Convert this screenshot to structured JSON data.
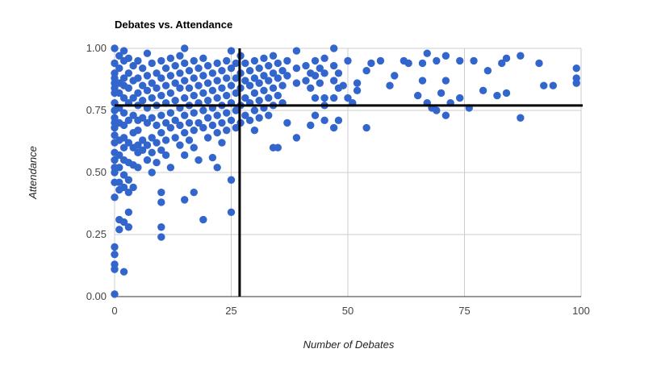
{
  "chart_data": {
    "type": "scatter",
    "title": "Debates vs. Attendance",
    "xlabel": "Number of Debates",
    "ylabel": "Attendance",
    "xlim": [
      0,
      100
    ],
    "ylim": [
      0,
      1
    ],
    "x_ticks": [
      0,
      25,
      50,
      75,
      100
    ],
    "x_tick_labels": [
      "0",
      "25",
      "50",
      "75",
      "100"
    ],
    "y_ticks": [
      0,
      0.25,
      0.5,
      0.75,
      1
    ],
    "y_tick_labels": [
      "0.00",
      "0.25",
      "0.50",
      "0.75",
      "1.00"
    ],
    "grid": true,
    "point_color": "#3366cc",
    "reference_lines": [
      {
        "orientation": "vertical",
        "value": 26.8,
        "color": "#000000"
      },
      {
        "orientation": "horizontal",
        "value": 0.77,
        "color": "#000000"
      }
    ],
    "series": [
      {
        "points": [
          [
            0,
            1.0
          ],
          [
            0,
            0.94
          ],
          [
            0,
            0.9
          ],
          [
            0,
            0.88
          ],
          [
            0,
            0.86
          ],
          [
            0,
            0.84
          ],
          [
            0,
            0.82
          ],
          [
            0,
            0.78
          ],
          [
            0,
            0.75
          ],
          [
            0,
            0.72
          ],
          [
            0,
            0.7
          ],
          [
            0,
            0.68
          ],
          [
            0,
            0.65
          ],
          [
            0,
            0.62
          ],
          [
            0,
            0.58
          ],
          [
            0,
            0.55
          ],
          [
            0,
            0.52
          ],
          [
            0,
            0.5
          ],
          [
            0,
            0.46
          ],
          [
            0,
            0.4
          ],
          [
            0,
            0.2
          ],
          [
            0,
            0.17
          ],
          [
            0,
            0.13
          ],
          [
            0,
            0.11
          ],
          [
            0,
            0.01
          ],
          [
            1,
            0.97
          ],
          [
            1,
            0.92
          ],
          [
            1,
            0.86
          ],
          [
            1,
            0.82
          ],
          [
            1,
            0.76
          ],
          [
            1,
            0.7
          ],
          [
            1,
            0.63
          ],
          [
            1,
            0.57
          ],
          [
            1,
            0.52
          ],
          [
            1,
            0.46
          ],
          [
            1,
            0.43
          ],
          [
            1,
            0.31
          ],
          [
            1,
            0.27
          ],
          [
            2,
            0.99
          ],
          [
            2,
            0.95
          ],
          [
            2,
            0.88
          ],
          [
            2,
            0.85
          ],
          [
            2,
            0.8
          ],
          [
            2,
            0.74
          ],
          [
            2,
            0.69
          ],
          [
            2,
            0.64
          ],
          [
            2,
            0.6
          ],
          [
            2,
            0.55
          ],
          [
            2,
            0.49
          ],
          [
            2,
            0.44
          ],
          [
            2,
            0.3
          ],
          [
            2,
            0.1
          ],
          [
            3,
            0.96
          ],
          [
            3,
            0.9
          ],
          [
            3,
            0.84
          ],
          [
            3,
            0.78
          ],
          [
            3,
            0.71
          ],
          [
            3,
            0.62
          ],
          [
            3,
            0.54
          ],
          [
            3,
            0.47
          ],
          [
            3,
            0.42
          ],
          [
            3,
            0.34
          ],
          [
            3,
            0.28
          ],
          [
            4,
            0.93
          ],
          [
            4,
            0.87
          ],
          [
            4,
            0.8
          ],
          [
            4,
            0.73
          ],
          [
            4,
            0.66
          ],
          [
            4,
            0.6
          ],
          [
            4,
            0.53
          ],
          [
            4,
            0.44
          ],
          [
            5,
            0.95
          ],
          [
            5,
            0.88
          ],
          [
            5,
            0.82
          ],
          [
            5,
            0.77
          ],
          [
            5,
            0.71
          ],
          [
            5,
            0.67
          ],
          [
            5,
            0.61
          ],
          [
            5,
            0.58
          ],
          [
            5,
            0.52
          ],
          [
            6,
            0.92
          ],
          [
            6,
            0.85
          ],
          [
            6,
            0.79
          ],
          [
            6,
            0.72
          ],
          [
            6,
            0.63
          ],
          [
            6,
            0.59
          ],
          [
            7,
            0.98
          ],
          [
            7,
            0.89
          ],
          [
            7,
            0.83
          ],
          [
            7,
            0.76
          ],
          [
            7,
            0.7
          ],
          [
            7,
            0.61
          ],
          [
            7,
            0.55
          ],
          [
            8,
            0.94
          ],
          [
            8,
            0.86
          ],
          [
            8,
            0.8
          ],
          [
            8,
            0.72
          ],
          [
            8,
            0.64
          ],
          [
            8,
            0.58
          ],
          [
            8,
            0.5
          ],
          [
            9,
            0.9
          ],
          [
            9,
            0.84
          ],
          [
            9,
            0.77
          ],
          [
            9,
            0.69
          ],
          [
            9,
            0.62
          ],
          [
            9,
            0.54
          ],
          [
            10,
            0.95
          ],
          [
            10,
            0.88
          ],
          [
            10,
            0.81
          ],
          [
            10,
            0.73
          ],
          [
            10,
            0.66
          ],
          [
            10,
            0.59
          ],
          [
            10,
            0.42
          ],
          [
            10,
            0.38
          ],
          [
            10,
            0.28
          ],
          [
            10,
            0.24
          ],
          [
            11,
            0.92
          ],
          [
            11,
            0.85
          ],
          [
            11,
            0.78
          ],
          [
            11,
            0.7
          ],
          [
            11,
            0.63
          ],
          [
            11,
            0.57
          ],
          [
            12,
            0.96
          ],
          [
            12,
            0.89
          ],
          [
            12,
            0.82
          ],
          [
            12,
            0.74
          ],
          [
            12,
            0.68
          ],
          [
            12,
            0.52
          ],
          [
            13,
            0.93
          ],
          [
            13,
            0.86
          ],
          [
            13,
            0.79
          ],
          [
            13,
            0.71
          ],
          [
            13,
            0.64
          ],
          [
            14,
            0.97
          ],
          [
            14,
            0.9
          ],
          [
            14,
            0.84
          ],
          [
            14,
            0.76
          ],
          [
            14,
            0.69
          ],
          [
            14,
            0.61
          ],
          [
            15,
            1.0
          ],
          [
            15,
            0.94
          ],
          [
            15,
            0.87
          ],
          [
            15,
            0.8
          ],
          [
            15,
            0.73
          ],
          [
            15,
            0.66
          ],
          [
            15,
            0.57
          ],
          [
            15,
            0.39
          ],
          [
            16,
            0.91
          ],
          [
            16,
            0.84
          ],
          [
            16,
            0.77
          ],
          [
            16,
            0.7
          ],
          [
            16,
            0.63
          ],
          [
            17,
            0.95
          ],
          [
            17,
            0.88
          ],
          [
            17,
            0.81
          ],
          [
            17,
            0.74
          ],
          [
            17,
            0.67
          ],
          [
            17,
            0.6
          ],
          [
            17,
            0.42
          ],
          [
            18,
            0.92
          ],
          [
            18,
            0.85
          ],
          [
            18,
            0.78
          ],
          [
            18,
            0.7
          ],
          [
            18,
            0.55
          ],
          [
            19,
            0.96
          ],
          [
            19,
            0.89
          ],
          [
            19,
            0.82
          ],
          [
            19,
            0.75
          ],
          [
            19,
            0.68
          ],
          [
            19,
            0.31
          ],
          [
            20,
            0.93
          ],
          [
            20,
            0.86
          ],
          [
            20,
            0.79
          ],
          [
            20,
            0.72
          ],
          [
            20,
            0.64
          ],
          [
            21,
            0.9
          ],
          [
            21,
            0.83
          ],
          [
            21,
            0.76
          ],
          [
            21,
            0.69
          ],
          [
            21,
            0.56
          ],
          [
            22,
            0.94
          ],
          [
            22,
            0.87
          ],
          [
            22,
            0.8
          ],
          [
            22,
            0.73
          ],
          [
            22,
            0.66
          ],
          [
            22,
            0.52
          ],
          [
            23,
            0.91
          ],
          [
            23,
            0.84
          ],
          [
            23,
            0.77
          ],
          [
            23,
            0.7
          ],
          [
            23,
            0.62
          ],
          [
            24,
            0.95
          ],
          [
            24,
            0.88
          ],
          [
            24,
            0.81
          ],
          [
            24,
            0.74
          ],
          [
            24,
            0.67
          ],
          [
            25,
            0.99
          ],
          [
            25,
            0.92
          ],
          [
            25,
            0.85
          ],
          [
            25,
            0.78
          ],
          [
            25,
            0.71
          ],
          [
            25,
            0.47
          ],
          [
            25,
            0.34
          ],
          [
            26,
            0.94
          ],
          [
            26,
            0.88
          ],
          [
            26,
            0.82
          ],
          [
            26,
            0.75
          ],
          [
            26,
            0.68
          ],
          [
            27,
            0.97
          ],
          [
            27,
            0.9
          ],
          [
            27,
            0.84
          ],
          [
            27,
            0.77
          ],
          [
            27,
            0.7
          ],
          [
            28,
            0.94
          ],
          [
            28,
            0.87
          ],
          [
            28,
            0.8
          ],
          [
            28,
            0.73
          ],
          [
            29,
            0.91
          ],
          [
            29,
            0.85
          ],
          [
            29,
            0.78
          ],
          [
            29,
            0.71
          ],
          [
            30,
            0.95
          ],
          [
            30,
            0.88
          ],
          [
            30,
            0.82
          ],
          [
            30,
            0.75
          ],
          [
            30,
            0.67
          ],
          [
            31,
            0.92
          ],
          [
            31,
            0.86
          ],
          [
            31,
            0.79
          ],
          [
            31,
            0.72
          ],
          [
            32,
            0.96
          ],
          [
            32,
            0.89
          ],
          [
            32,
            0.83
          ],
          [
            32,
            0.76
          ],
          [
            33,
            0.93
          ],
          [
            33,
            0.87
          ],
          [
            33,
            0.8
          ],
          [
            33,
            0.73
          ],
          [
            34,
            0.97
          ],
          [
            34,
            0.9
          ],
          [
            34,
            0.84
          ],
          [
            34,
            0.77
          ],
          [
            34,
            0.6
          ],
          [
            35,
            0.94
          ],
          [
            35,
            0.88
          ],
          [
            35,
            0.81
          ],
          [
            35,
            0.6
          ],
          [
            36,
            0.91
          ],
          [
            36,
            0.85
          ],
          [
            36,
            0.78
          ],
          [
            37,
            0.95
          ],
          [
            37,
            0.89
          ],
          [
            37,
            0.7
          ],
          [
            39,
            0.99
          ],
          [
            39,
            0.92
          ],
          [
            39,
            0.86
          ],
          [
            39,
            0.64
          ],
          [
            41,
            0.93
          ],
          [
            41,
            0.87
          ],
          [
            42,
            0.9
          ],
          [
            42,
            0.84
          ],
          [
            42,
            0.69
          ],
          [
            43,
            0.95
          ],
          [
            43,
            0.89
          ],
          [
            43,
            0.8
          ],
          [
            43,
            0.73
          ],
          [
            44,
            0.92
          ],
          [
            44,
            0.86
          ],
          [
            45,
            0.96
          ],
          [
            45,
            0.9
          ],
          [
            45,
            0.8
          ],
          [
            45,
            0.77
          ],
          [
            45,
            0.71
          ],
          [
            47,
            1.0
          ],
          [
            47,
            0.93
          ],
          [
            47,
            0.87
          ],
          [
            47,
            0.8
          ],
          [
            47,
            0.68
          ],
          [
            48,
            0.9
          ],
          [
            48,
            0.84
          ],
          [
            48,
            0.71
          ],
          [
            49,
            0.85
          ],
          [
            50,
            0.95
          ],
          [
            50,
            0.8
          ],
          [
            51,
            0.78
          ],
          [
            52,
            0.86
          ],
          [
            52,
            0.83
          ],
          [
            54,
            0.91
          ],
          [
            54,
            0.68
          ],
          [
            55,
            0.94
          ],
          [
            57,
            0.95
          ],
          [
            59,
            0.85
          ],
          [
            60,
            0.89
          ],
          [
            62,
            0.95
          ],
          [
            63,
            0.94
          ],
          [
            65,
            0.81
          ],
          [
            66,
            0.94
          ],
          [
            66,
            0.87
          ],
          [
            67,
            0.98
          ],
          [
            67,
            0.78
          ],
          [
            68,
            0.76
          ],
          [
            69,
            0.95
          ],
          [
            69,
            0.75
          ],
          [
            70,
            0.82
          ],
          [
            71,
            0.97
          ],
          [
            71,
            0.87
          ],
          [
            71,
            0.73
          ],
          [
            72,
            0.78
          ],
          [
            74,
            0.95
          ],
          [
            74,
            0.8
          ],
          [
            76,
            0.76
          ],
          [
            77,
            0.95
          ],
          [
            79,
            0.83
          ],
          [
            80,
            0.91
          ],
          [
            82,
            0.81
          ],
          [
            83,
            0.94
          ],
          [
            84,
            0.96
          ],
          [
            84,
            0.82
          ],
          [
            87,
            0.97
          ],
          [
            87,
            0.72
          ],
          [
            91,
            0.94
          ],
          [
            92,
            0.85
          ],
          [
            94,
            0.85
          ],
          [
            99,
            0.92
          ],
          [
            99,
            0.88
          ],
          [
            99,
            0.86
          ]
        ]
      }
    ]
  }
}
